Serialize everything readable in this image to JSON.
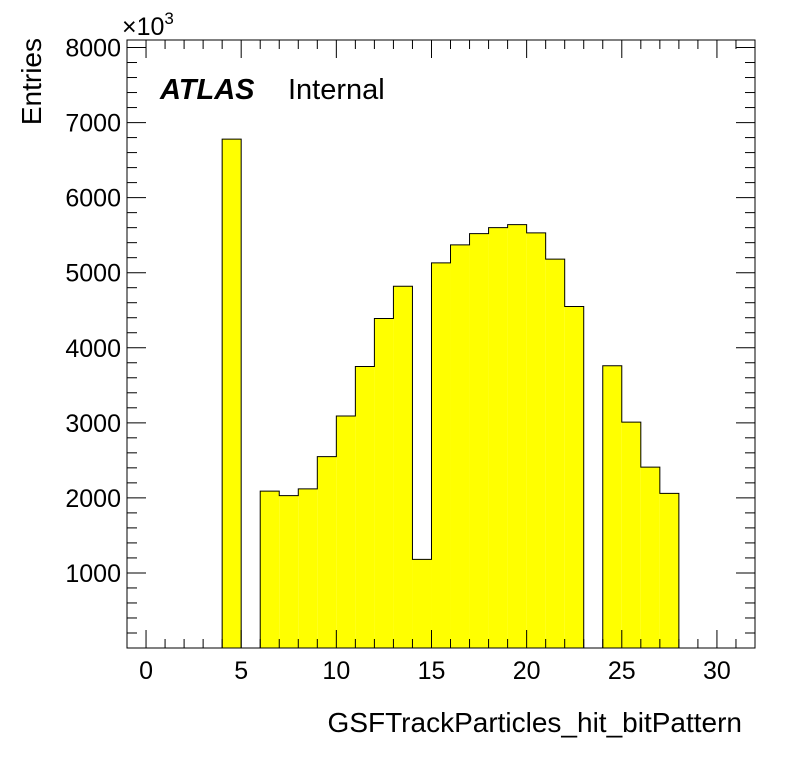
{
  "chart_data": {
    "type": "bar",
    "title": "",
    "xlabel": "GSFTrackParticles_hit_bitPattern",
    "ylabel": "Entries",
    "y_multiplier_label": {
      "base": "×10",
      "exponent": "3"
    },
    "x_range": [
      -1,
      32
    ],
    "ylim": [
      0,
      8100
    ],
    "x_ticks": [
      0,
      5,
      10,
      15,
      20,
      25,
      30
    ],
    "y_ticks": [
      1000,
      2000,
      3000,
      4000,
      5000,
      6000,
      7000,
      8000
    ],
    "bin_width": 1,
    "bin_low_edges": [
      0,
      1,
      2,
      3,
      4,
      5,
      6,
      7,
      8,
      9,
      10,
      11,
      12,
      13,
      14,
      15,
      16,
      17,
      18,
      19,
      20,
      21,
      22,
      23,
      24,
      25,
      26,
      27,
      28,
      29,
      30,
      31
    ],
    "values": [
      0,
      0,
      0,
      0,
      6780,
      0,
      2090,
      2030,
      2120,
      2550,
      3090,
      3750,
      4390,
      4820,
      1180,
      5130,
      5370,
      5520,
      5600,
      5640,
      5530,
      5180,
      4550,
      0,
      3760,
      3010,
      2410,
      2060,
      0,
      0,
      0,
      0
    ],
    "fill_color": "#ffff00",
    "line_color": "#000000"
  },
  "atlas_label": {
    "experiment": "ATLAS",
    "status": "Internal"
  }
}
